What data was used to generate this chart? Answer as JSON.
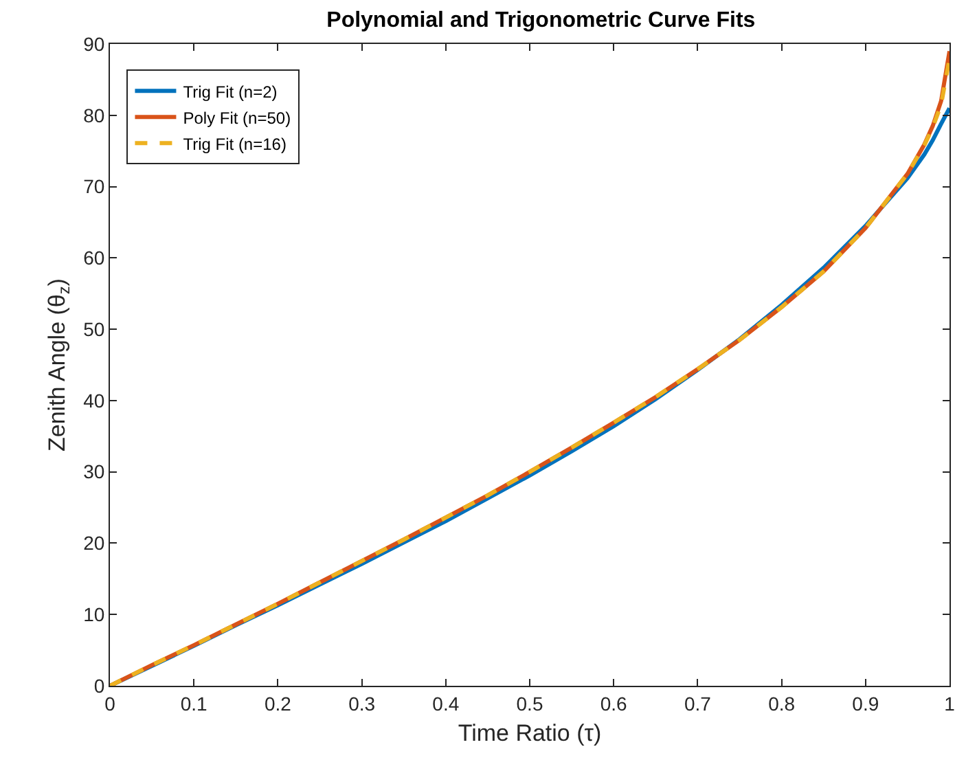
{
  "chart_data": {
    "type": "line",
    "title": "Polynomial and Trigonometric Curve Fits",
    "xlabel": "Time Ratio (τ)",
    "ylabel": "Zenith Angle (θ$_{z}$)",
    "x": [
      0,
      0.05,
      0.1,
      0.15,
      0.2,
      0.25,
      0.3,
      0.35,
      0.4,
      0.45,
      0.5,
      0.55,
      0.6,
      0.65,
      0.7,
      0.75,
      0.8,
      0.85,
      0.9,
      0.95,
      0.97,
      0.98,
      0.99,
      1
    ],
    "series": [
      {
        "name": "Trig Fit (n=2)",
        "color": "#0072bd",
        "line_style": "solid",
        "values": [
          0,
          2.8,
          5.6,
          8.5,
          11.3,
          14.2,
          17.1,
          20.1,
          23.1,
          26.3,
          29.5,
          32.9,
          36.4,
          40.2,
          44.3,
          48.6,
          53.4,
          58.6,
          64.5,
          71.2,
          74.5,
          76.5,
          78.8,
          81
        ]
      },
      {
        "name": "Poly Fit (n=50)",
        "color": "#d95319",
        "line_style": "solid",
        "values": [
          0,
          2.9,
          5.7,
          8.6,
          11.5,
          14.5,
          17.5,
          20.5,
          23.6,
          26.7,
          30,
          33.4,
          36.9,
          40.5,
          44.4,
          48.5,
          53.1,
          58.1,
          64.2,
          71.8,
          75.9,
          78.5,
          82,
          89
        ]
      },
      {
        "name": "Trig Fit (n=16)",
        "color": "#edb120",
        "line_style": "dashed",
        "values": [
          0,
          2.9,
          5.7,
          8.6,
          11.5,
          14.5,
          17.5,
          20.5,
          23.6,
          26.7,
          30,
          33.4,
          36.9,
          40.5,
          44.4,
          48.5,
          53.1,
          58.1,
          64.2,
          71.8,
          75.8,
          78.3,
          81.5,
          88
        ]
      }
    ],
    "xlim": [
      0,
      1
    ],
    "xticks": [
      0,
      0.1,
      0.2,
      0.3,
      0.4,
      0.5,
      0.6,
      0.7,
      0.8,
      0.9,
      1
    ],
    "ylim": [
      0,
      90
    ],
    "yticks": [
      0,
      10,
      20,
      30,
      40,
      50,
      60,
      70,
      80,
      90
    ],
    "legend": "top left",
    "marker": "none"
  }
}
